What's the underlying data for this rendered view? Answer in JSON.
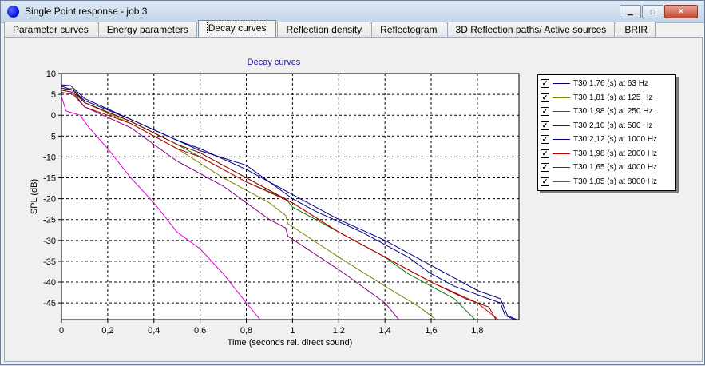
{
  "window": {
    "title": "Single Point response - job 3"
  },
  "tabs": [
    {
      "label": "Parameter curves",
      "active": false
    },
    {
      "label": "Energy parameters",
      "active": false
    },
    {
      "label": "Decay curves",
      "active": true
    },
    {
      "label": "Reflection density",
      "active": false
    },
    {
      "label": "Reflectogram",
      "active": false
    },
    {
      "label": "3D Reflection paths/ Active sources",
      "active": false
    },
    {
      "label": "BRIR",
      "active": false
    }
  ],
  "chart_data": {
    "type": "line",
    "title": "Decay curves",
    "xlabel": "Time (seconds rel. direct sound)",
    "ylabel": "SPL (dB)",
    "xlim": [
      0,
      1.98
    ],
    "ylim": [
      -49,
      10
    ],
    "xticks": [
      0,
      0.2,
      0.4,
      0.6,
      0.8,
      1,
      1.2,
      1.4,
      1.6,
      1.8
    ],
    "xtick_labels": [
      "0",
      "0,2",
      "0,4",
      "0,6",
      "0,8",
      "1",
      "1,2",
      "1,4",
      "1,6",
      "1,8"
    ],
    "yticks": [
      10,
      5,
      0,
      -5,
      -10,
      -15,
      -20,
      -25,
      -30,
      -35,
      -40,
      -45
    ],
    "grid": true,
    "legend_position": "right",
    "series": [
      {
        "name": "T30 1,76 (s) at 63 Hz",
        "color": "#000080",
        "checked": true,
        "points": [
          [
            0,
            7.3
          ],
          [
            0.04,
            7.1
          ],
          [
            0.1,
            4
          ],
          [
            0.3,
            -1
          ],
          [
            0.5,
            -6
          ],
          [
            0.6,
            -8.5
          ],
          [
            0.8,
            -12
          ],
          [
            1.0,
            -20
          ],
          [
            1.1,
            -23
          ],
          [
            1.3,
            -28
          ],
          [
            1.5,
            -34
          ],
          [
            1.6,
            -38
          ],
          [
            1.7,
            -41
          ],
          [
            1.8,
            -43
          ],
          [
            1.9,
            -45
          ],
          [
            1.92,
            -48
          ],
          [
            1.96,
            -49
          ]
        ]
      },
      {
        "name": "T30 1,81 (s) at 125 Hz",
        "color": "#808000",
        "checked": true,
        "points": [
          [
            0,
            6
          ],
          [
            0.05,
            6.5
          ],
          [
            0.1,
            3
          ],
          [
            0.3,
            -2
          ],
          [
            0.5,
            -8
          ],
          [
            0.7,
            -15
          ],
          [
            0.9,
            -21
          ],
          [
            0.97,
            -24
          ],
          [
            0.98,
            -26
          ],
          [
            1.2,
            -34
          ],
          [
            1.4,
            -41
          ],
          [
            1.55,
            -46
          ],
          [
            1.62,
            -49
          ]
        ]
      },
      {
        "name": "T30 1,98 (s) at 250 Hz",
        "color": "#008000",
        "checked": true,
        "points": [
          [
            0,
            6
          ],
          [
            0.05,
            5.5
          ],
          [
            0.1,
            3
          ],
          [
            0.3,
            -1.5
          ],
          [
            0.5,
            -7
          ],
          [
            0.6,
            -10
          ],
          [
            0.8,
            -16
          ],
          [
            0.97,
            -20
          ],
          [
            1.0,
            -22
          ],
          [
            1.2,
            -28
          ],
          [
            1.4,
            -34
          ],
          [
            1.5,
            -38
          ],
          [
            1.7,
            -44
          ],
          [
            1.79,
            -49
          ]
        ]
      },
      {
        "name": "T30 2,10 (s) at 500 Hz",
        "color": "#800000",
        "checked": true,
        "points": [
          [
            0,
            6.5
          ],
          [
            0.05,
            6
          ],
          [
            0.1,
            3
          ],
          [
            0.3,
            -1.5
          ],
          [
            0.5,
            -7
          ],
          [
            0.6,
            -9
          ],
          [
            0.8,
            -15
          ],
          [
            1.0,
            -21
          ],
          [
            1.2,
            -28
          ],
          [
            1.4,
            -34
          ],
          [
            1.5,
            -37
          ],
          [
            1.6,
            -40
          ],
          [
            1.75,
            -44
          ],
          [
            1.85,
            -46
          ],
          [
            1.88,
            -49
          ]
        ]
      },
      {
        "name": "T30 2,12 (s) at 1000 Hz",
        "color": "#000080",
        "checked": true,
        "points": [
          [
            0,
            7
          ],
          [
            0.05,
            6
          ],
          [
            0.1,
            3.5
          ],
          [
            0.3,
            -1
          ],
          [
            0.5,
            -6
          ],
          [
            0.6,
            -8
          ],
          [
            0.8,
            -13
          ],
          [
            1.0,
            -19
          ],
          [
            1.2,
            -25
          ],
          [
            1.4,
            -30
          ],
          [
            1.6,
            -36
          ],
          [
            1.7,
            -39
          ],
          [
            1.8,
            -42
          ],
          [
            1.9,
            -44
          ],
          [
            1.93,
            -48
          ],
          [
            1.97,
            -49
          ]
        ]
      },
      {
        "name": "T30 1,98 (s) at 2000 Hz",
        "color": "#c00000",
        "checked": true,
        "points": [
          [
            0,
            5.5
          ],
          [
            0.05,
            5
          ],
          [
            0.1,
            2
          ],
          [
            0.3,
            -2
          ],
          [
            0.5,
            -8
          ],
          [
            0.6,
            -10
          ],
          [
            0.8,
            -16
          ],
          [
            1.0,
            -21
          ],
          [
            1.2,
            -28
          ],
          [
            1.4,
            -34
          ],
          [
            1.6,
            -40
          ],
          [
            1.8,
            -45
          ],
          [
            1.89,
            -49
          ]
        ]
      },
      {
        "name": "T30 1,65 (s) at 4000 Hz",
        "color": "#800080",
        "checked": true,
        "points": [
          [
            0,
            6
          ],
          [
            0.05,
            5.5
          ],
          [
            0.1,
            2
          ],
          [
            0.3,
            -3
          ],
          [
            0.5,
            -11
          ],
          [
            0.7,
            -17
          ],
          [
            0.9,
            -25
          ],
          [
            0.97,
            -27
          ],
          [
            0.98,
            -29
          ],
          [
            1.2,
            -37
          ],
          [
            1.4,
            -45
          ],
          [
            1.46,
            -49
          ]
        ]
      },
      {
        "name": "T30 1,05 (s) at 8000 Hz",
        "color": "#e000e0",
        "checked": true,
        "points": [
          [
            0,
            4.5
          ],
          [
            0.02,
            1
          ],
          [
            0.08,
            0
          ],
          [
            0.12,
            -3
          ],
          [
            0.2,
            -8
          ],
          [
            0.3,
            -15
          ],
          [
            0.4,
            -21
          ],
          [
            0.5,
            -28
          ],
          [
            0.6,
            -32
          ],
          [
            0.7,
            -38
          ],
          [
            0.8,
            -45
          ],
          [
            0.86,
            -49
          ]
        ]
      }
    ]
  }
}
